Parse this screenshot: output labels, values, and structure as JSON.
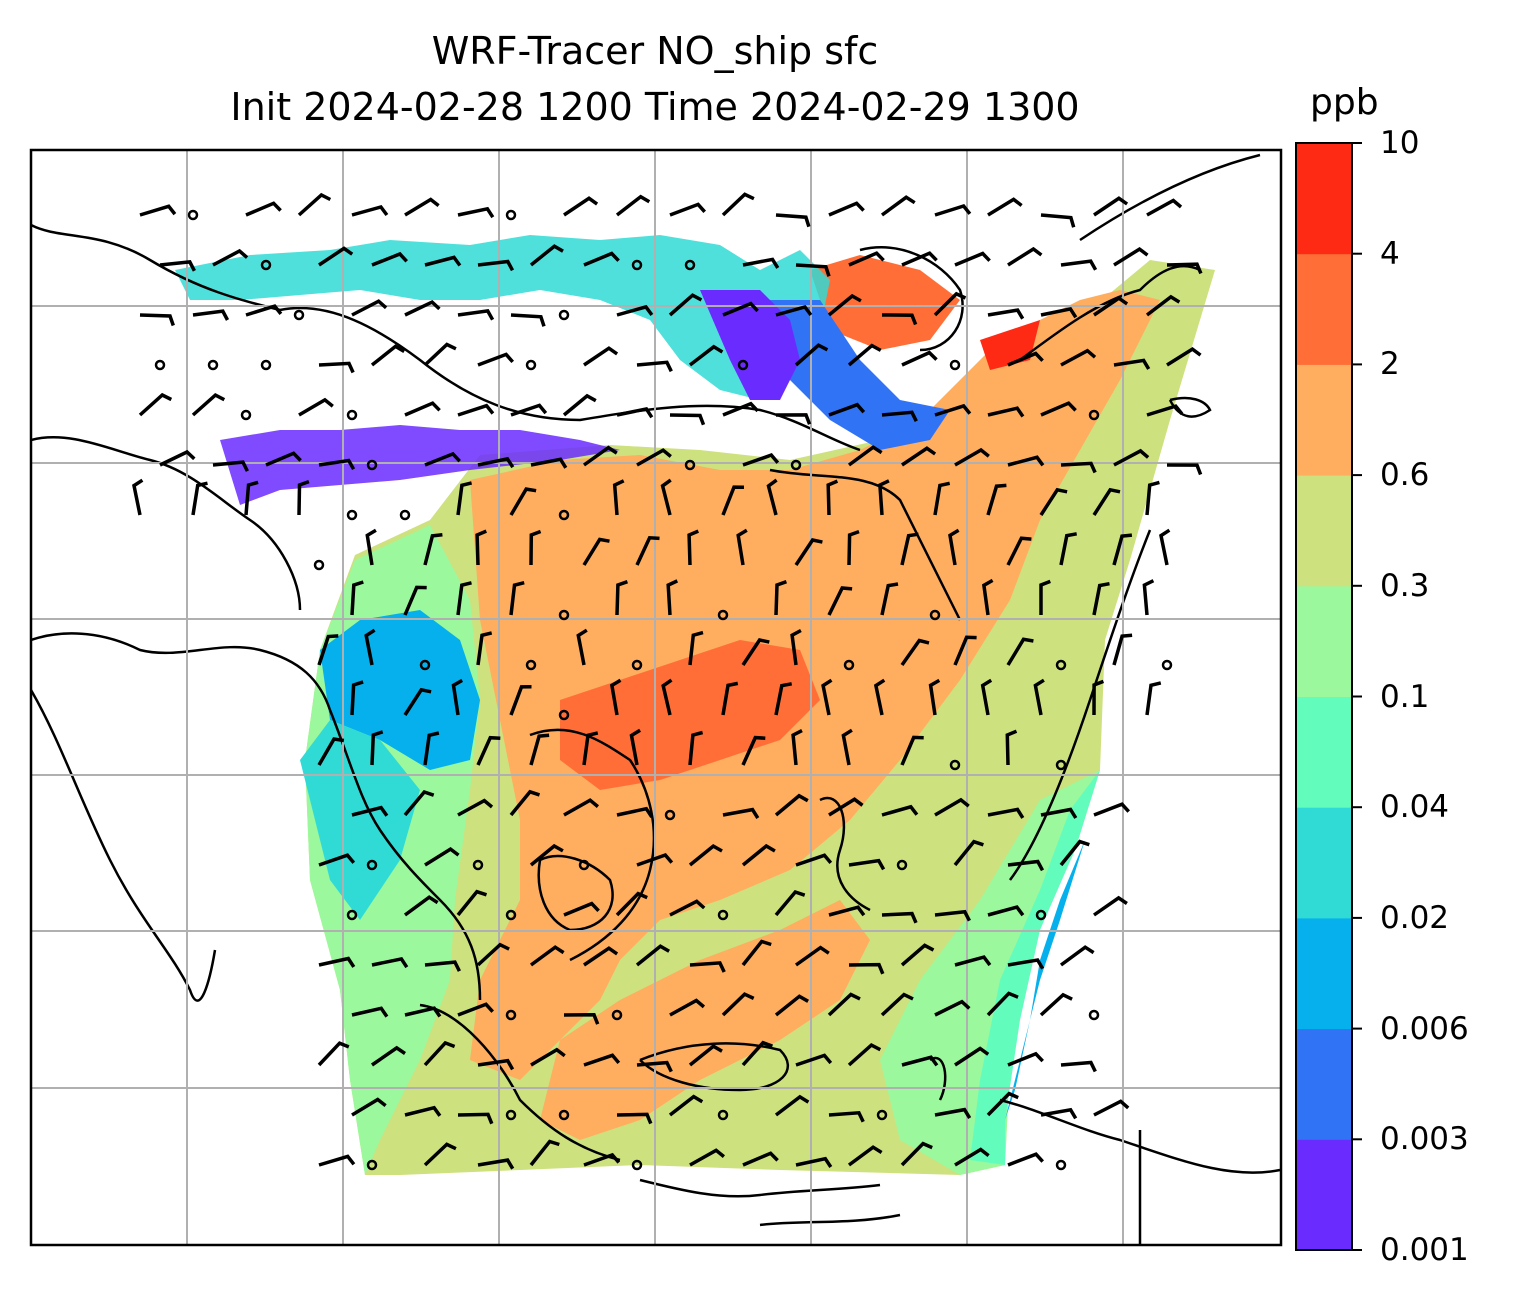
{
  "title_line1": "WRF-Tracer NO_ship sfc",
  "title_line2": "Init 2024-02-28 1200 Time 2024-02-29 1300",
  "colorbar": {
    "unit": "ppb",
    "levels": [
      "0.001",
      "0.003",
      "0.006",
      "0.02",
      "0.04",
      "0.1",
      "0.3",
      "0.6",
      "2",
      "4",
      "10"
    ],
    "colors": [
      "#6a2bff",
      "#3173f5",
      "#05b0ec",
      "#31dbd5",
      "#62fdbd",
      "#9cf89c",
      "#cde17e",
      "#ffad5f",
      "#ff6e37",
      "#ff2a14"
    ]
  },
  "map": {
    "type": "filled-contour-with-wind-barbs",
    "field": "NO_ship",
    "level": "sfc",
    "gridlines": true,
    "coastlines": true,
    "wind_barbs": true
  }
}
